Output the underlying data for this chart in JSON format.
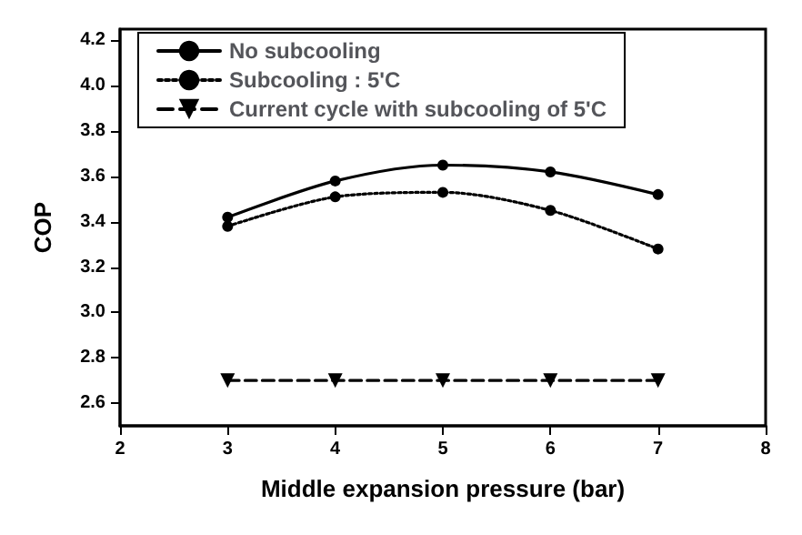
{
  "chart_data": {
    "type": "line",
    "xlabel": "Middle expansion pressure (bar)",
    "ylabel": "COP",
    "xlim": [
      2,
      8
    ],
    "xticks": [
      2,
      3,
      4,
      5,
      6,
      7,
      8
    ],
    "ylim": [
      2.5,
      4.25
    ],
    "yticks": [
      {
        "value": 2.6,
        "label": "2.6"
      },
      {
        "value": 2.8,
        "label": "2.8"
      },
      {
        "value": 3.0,
        "label": "3.0"
      },
      {
        "value": 3.2,
        "label": "3.2"
      },
      {
        "value": 3.4,
        "label": "3.4"
      },
      {
        "value": 3.6,
        "label": "3.6"
      },
      {
        "value": 3.8,
        "label": "3.8"
      },
      {
        "value": 4.0,
        "label": "4.0"
      },
      {
        "value": 4.2,
        "label": "4.2"
      }
    ],
    "x": [
      3,
      4,
      5,
      6,
      7
    ],
    "legend": "top left",
    "grid": false,
    "series": [
      {
        "name": "No subcooling",
        "color": "#000000",
        "marker": "circle",
        "line_style": "solid",
        "values": [
          3.42,
          3.58,
          3.65,
          3.62,
          3.52
        ]
      },
      {
        "name": "Subcooling : 5'C",
        "color": "#000000",
        "marker": "circle",
        "line_style": "dotted",
        "values": [
          3.38,
          3.51,
          3.53,
          3.45,
          3.28
        ]
      },
      {
        "name": "Current cycle with subcooling of 5'C",
        "color": "#000000",
        "marker": "triangle",
        "line_style": "dashed",
        "values": [
          2.7,
          2.7,
          2.7,
          2.7,
          2.7
        ]
      }
    ]
  }
}
